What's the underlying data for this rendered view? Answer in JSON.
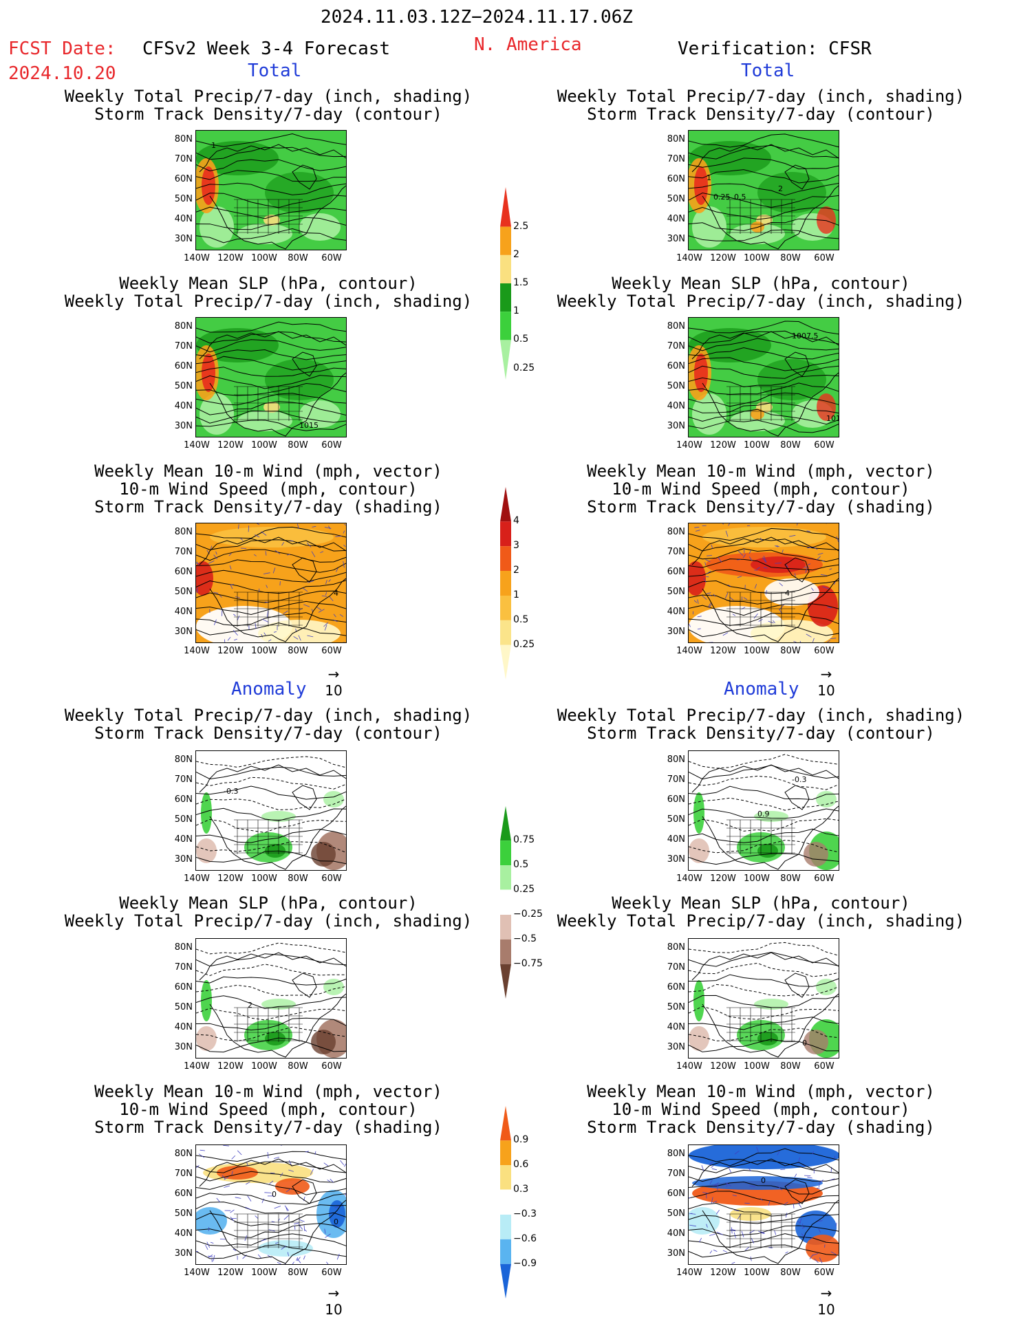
{
  "header": {
    "period": "2024.11.03.12Z−2024.11.17.06Z",
    "region": "N. America",
    "fcst_label": "FCST Date:",
    "fcst_date": "2024.10.20",
    "model": "CFSv2 Week 3-4 Forecast",
    "verification": "Verification: CFSR"
  },
  "sections": {
    "total": "Total",
    "anomaly": "Anomaly"
  },
  "titles": {
    "precip_track": [
      "Weekly Total Precip/7-day (inch, shading)",
      "Storm Track Density/7-day (contour)"
    ],
    "slp_precip": [
      "Weekly Mean SLP (hPa, contour)",
      "Weekly Total Precip/7-day (inch, shading)"
    ],
    "wind_track": [
      "Weekly Mean 10-m Wind (mph, vector)",
      "10-m Wind Speed (mph, contour)",
      "Storm Track Density/7-day (shading)"
    ]
  },
  "axes": {
    "lat": [
      "80N",
      "70N",
      "60N",
      "50N",
      "40N",
      "30N"
    ],
    "lon": [
      "140W",
      "120W",
      "100W",
      "80W",
      "60W"
    ]
  },
  "vector_ref": "10",
  "colorbars": {
    "precip_total": {
      "labels": [
        "2.5",
        "2",
        "1.5",
        "1",
        "0.5",
        "0.25"
      ],
      "colors": [
        "#e8321e",
        "#f7a21b",
        "#fae080",
        "#1a9a1a",
        "#3cd03c",
        "#a8f0a0"
      ]
    },
    "track_total": {
      "labels": [
        "4",
        "3",
        "2",
        "1",
        "0.5",
        "0.25"
      ],
      "colors": [
        "#a01010",
        "#d8201a",
        "#f05a18",
        "#f7a21b",
        "#fac040",
        "#fbe48a",
        "#fff7c8"
      ]
    },
    "precip_anom": {
      "labels": [
        "0.75",
        "0.5",
        "0.25",
        "−0.25",
        "−0.5",
        "−0.75"
      ],
      "colors": [
        "#1a9a1a",
        "#3cd03c",
        "#a8f0a0",
        "#ffffff",
        "#e0c0b4",
        "#a87c6c",
        "#6a4030"
      ]
    },
    "track_anom": {
      "labels": [
        "0.9",
        "0.6",
        "0.3",
        "−0.3",
        "−0.6",
        "−0.9"
      ],
      "colors": [
        "#f05a18",
        "#f7a21b",
        "#fae080",
        "#ffffff",
        "#b8ecf6",
        "#5ab4f0",
        "#1a64d8"
      ]
    }
  },
  "panel_labels": {
    "p1": "1",
    "p2": "1",
    "p3": "1015",
    "p4": "1007.5",
    "p5": "101",
    "p6": "2",
    "p7": "4",
    "p8": "4",
    "p9": "-0.3",
    "p10": "0.9",
    "p11": "-0.3",
    "p12": "2",
    "p13": "0",
    "p14": "0",
    "p15": "0",
    "p16": "0",
    "p17": "0.25",
    "p18": "0.5"
  }
}
